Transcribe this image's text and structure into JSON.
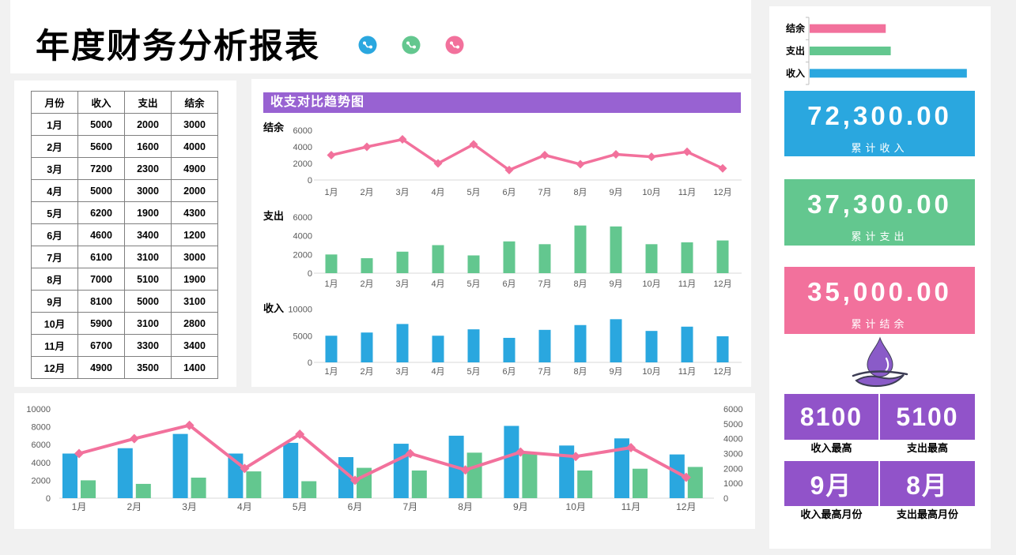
{
  "page": {
    "title": "年度财务分析报表"
  },
  "header": {
    "icons": [
      {
        "name": "trend-icon-blue",
        "color": "#2AA7DF"
      },
      {
        "name": "trend-icon-green",
        "color": "#63C78F"
      },
      {
        "name": "trend-icon-pink",
        "color": "#F2719C"
      }
    ]
  },
  "table": {
    "headers": [
      "月份",
      "收入",
      "支出",
      "结余"
    ],
    "rows": [
      [
        "1月",
        5000,
        2000,
        3000
      ],
      [
        "2月",
        5600,
        1600,
        4000
      ],
      [
        "3月",
        7200,
        2300,
        4900
      ],
      [
        "4月",
        5000,
        3000,
        2000
      ],
      [
        "5月",
        6200,
        1900,
        4300
      ],
      [
        "6月",
        4600,
        3400,
        1200
      ],
      [
        "7月",
        6100,
        3100,
        3000
      ],
      [
        "8月",
        7000,
        5100,
        1900
      ],
      [
        "9月",
        8100,
        5000,
        3100
      ],
      [
        "10月",
        5900,
        3100,
        2800
      ],
      [
        "11月",
        6700,
        3300,
        3400
      ],
      [
        "12月",
        4900,
        3500,
        1400
      ]
    ]
  },
  "trend_panel": {
    "title": "收支对比趋势图",
    "accent_color": "#9862D2"
  },
  "chart_data": [
    {
      "id": "balance_trend",
      "type": "line",
      "title": "结余",
      "categories": [
        "1月",
        "2月",
        "3月",
        "4月",
        "5月",
        "6月",
        "7月",
        "8月",
        "9月",
        "10月",
        "11月",
        "12月"
      ],
      "values": [
        3000,
        4000,
        4900,
        2000,
        4300,
        1200,
        3000,
        1900,
        3100,
        2800,
        3400,
        1400
      ],
      "ylim": [
        0,
        6000
      ],
      "yticks": [
        0,
        2000,
        4000,
        6000
      ],
      "color": "#F2719C",
      "grid": false,
      "legend": "none"
    },
    {
      "id": "expense_trend",
      "type": "bar",
      "title": "支出",
      "categories": [
        "1月",
        "2月",
        "3月",
        "4月",
        "5月",
        "6月",
        "7月",
        "8月",
        "9月",
        "10月",
        "11月",
        "12月"
      ],
      "values": [
        2000,
        1600,
        2300,
        3000,
        1900,
        3400,
        3100,
        5100,
        5000,
        3100,
        3300,
        3500
      ],
      "ylim": [
        0,
        6000
      ],
      "yticks": [
        0,
        2000,
        4000,
        6000
      ],
      "color": "#63C78F",
      "grid": false,
      "legend": "none"
    },
    {
      "id": "income_trend",
      "type": "bar",
      "title": "收入",
      "categories": [
        "1月",
        "2月",
        "3月",
        "4月",
        "5月",
        "6月",
        "7月",
        "8月",
        "9月",
        "10月",
        "11月",
        "12月"
      ],
      "values": [
        5000,
        5600,
        7200,
        5000,
        6200,
        4600,
        6100,
        7000,
        8100,
        5900,
        6700,
        4900
      ],
      "ylim": [
        0,
        10000
      ],
      "yticks": [
        0,
        5000,
        10000
      ],
      "color": "#2AA7DF",
      "grid": false,
      "legend": "none"
    },
    {
      "id": "combo",
      "type": "bar+line",
      "categories": [
        "1月",
        "2月",
        "3月",
        "4月",
        "5月",
        "6月",
        "7月",
        "8月",
        "9月",
        "10月",
        "11月",
        "12月"
      ],
      "series": [
        {
          "name": "收入",
          "type": "bar",
          "axis": "left",
          "color": "#2AA7DF",
          "values": [
            5000,
            5600,
            7200,
            5000,
            6200,
            4600,
            6100,
            7000,
            8100,
            5900,
            6700,
            4900
          ]
        },
        {
          "name": "支出",
          "type": "bar",
          "axis": "left",
          "color": "#63C78F",
          "values": [
            2000,
            1600,
            2300,
            3000,
            1900,
            3400,
            3100,
            5100,
            5000,
            3100,
            3300,
            3500
          ]
        },
        {
          "name": "结余",
          "type": "line",
          "axis": "right",
          "color": "#F2719C",
          "values": [
            3000,
            4000,
            4900,
            2000,
            4300,
            1200,
            3000,
            1900,
            3100,
            2800,
            3400,
            1400
          ]
        }
      ],
      "left_ylim": [
        0,
        10000
      ],
      "left_yticks": [
        0,
        2000,
        4000,
        6000,
        8000,
        10000
      ],
      "right_ylim": [
        0,
        6000
      ],
      "right_yticks": [
        0,
        1000,
        2000,
        3000,
        4000,
        5000,
        6000
      ],
      "grid": false,
      "legend": "none"
    },
    {
      "id": "totals_hbar",
      "type": "bar",
      "orientation": "horizontal",
      "categories": [
        "结余",
        "支出",
        "收入"
      ],
      "values": [
        35000,
        37300,
        72300
      ],
      "colors": [
        "#F2719C",
        "#63C78F",
        "#2AA7DF"
      ],
      "xlim": [
        0,
        80000
      ],
      "grid": false,
      "legend": "none"
    }
  ],
  "summary": {
    "cards": [
      {
        "value": "72,300.00",
        "label": "累计收入",
        "color": "#2AA7DF"
      },
      {
        "value": "37,300.00",
        "label": "累计支出",
        "color": "#63C78F"
      },
      {
        "value": "35,000.00",
        "label": "累计结余",
        "color": "#F2719C"
      }
    ],
    "stats": [
      {
        "value": "8100",
        "label": "收入最高"
      },
      {
        "value": "5100",
        "label": "支出最高"
      },
      {
        "value": "9月",
        "label": "收入最高月份"
      },
      {
        "value": "8月",
        "label": "支出最高月份"
      }
    ]
  },
  "colors": {
    "income": "#2AA7DF",
    "expense": "#63C78F",
    "balance": "#F2719C",
    "stat_purple": "#9153C9",
    "header_purple": "#9862D2",
    "axis_text": "#595959",
    "axis_line": "#D9D9D9"
  }
}
